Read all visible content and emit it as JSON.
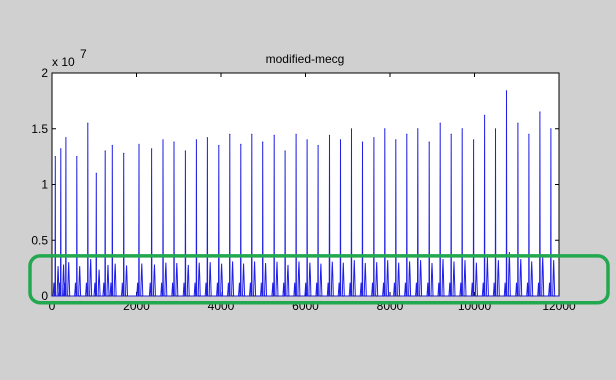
{
  "chart_data": {
    "type": "line",
    "title": "modified-mecg",
    "exponent_label": "x 10",
    "exponent_power": "7",
    "xlabel": "",
    "ylabel": "",
    "xlim": [
      0,
      12000
    ],
    "ylim": [
      0,
      2
    ],
    "y_scale_multiplier": 10000000,
    "x_ticks": [
      0,
      2000,
      4000,
      6000,
      8000,
      10000,
      12000
    ],
    "x_tick_labels": [
      "0",
      "2000",
      "4000",
      "6000",
      "8000",
      "10000",
      "12000"
    ],
    "y_ticks": [
      0,
      0.5,
      1,
      1.5,
      2
    ],
    "y_tick_labels": [
      "0",
      "0.5",
      "1",
      "1.5",
      "2"
    ],
    "grid": false,
    "series": [
      {
        "color": "#1f1fe6",
        "peak_x": [
          80,
          210,
          330,
          590,
          850,
          1050,
          1260,
          1430,
          1700,
          2060,
          2360,
          2630,
          2890,
          3160,
          3420,
          3680,
          3950,
          4210,
          4470,
          4730,
          4990,
          5260,
          5520,
          5780,
          6040,
          6300,
          6570,
          6830,
          7090,
          7350,
          7620,
          7880,
          8140,
          8400,
          8660,
          8930,
          9190,
          9450,
          9710,
          9980,
          10240,
          10500,
          10760,
          11030,
          11290,
          11550,
          11810
        ],
        "peak_y": [
          1.25,
          1.32,
          1.42,
          1.25,
          1.55,
          1.1,
          1.3,
          1.35,
          1.28,
          1.36,
          1.32,
          1.4,
          1.38,
          1.3,
          1.4,
          1.42,
          1.35,
          1.45,
          1.36,
          1.45,
          1.38,
          1.44,
          1.3,
          1.45,
          1.4,
          1.35,
          1.44,
          1.4,
          1.5,
          1.38,
          1.42,
          1.5,
          1.4,
          1.45,
          1.5,
          1.38,
          1.55,
          1.45,
          1.5,
          1.4,
          1.62,
          1.5,
          1.84,
          1.55,
          1.45,
          1.65,
          1.5
        ],
        "p_wave_y": 0.12,
        "t_wave_y": 0.3,
        "baseline_y": 0.0
      }
    ]
  },
  "annotation": {
    "highlight_color": "#22a84e",
    "highlight_y_range": [
      -0.06,
      0.36
    ]
  }
}
